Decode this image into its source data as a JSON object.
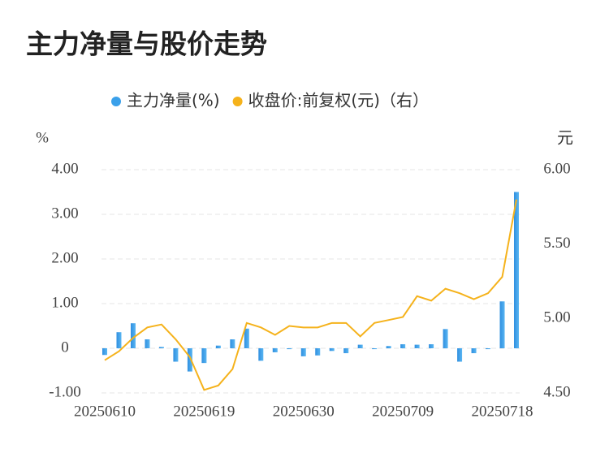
{
  "chart_data": {
    "type": "bar_line",
    "title": "主力净量与股价走势",
    "y_unit": "%",
    "y2_unit": "元",
    "categories": [
      "20250610",
      null,
      null,
      null,
      null,
      null,
      null,
      "20250619",
      null,
      null,
      null,
      null,
      null,
      null,
      "20250630",
      null,
      null,
      null,
      null,
      null,
      null,
      "20250709",
      null,
      null,
      null,
      null,
      null,
      null,
      "20250718",
      null
    ],
    "series": [
      {
        "name": "主力净量(%)",
        "type": "bar",
        "color": "#3aa0ea",
        "values": [
          -0.15,
          0.36,
          0.56,
          0.2,
          0.03,
          -0.3,
          -0.52,
          -0.33,
          0.06,
          0.2,
          0.44,
          -0.28,
          -0.09,
          -0.02,
          -0.18,
          -0.16,
          -0.06,
          -0.11,
          0.08,
          -0.02,
          0.05,
          0.09,
          0.08,
          0.09,
          0.43,
          -0.3,
          -0.11,
          -0.02,
          1.05,
          3.5
        ]
      },
      {
        "name": "收盘价:前复权(元)（右）",
        "type": "line",
        "axis": "y2",
        "color": "#f5b21b",
        "values": [
          4.72,
          4.78,
          4.87,
          4.94,
          4.96,
          4.86,
          4.74,
          4.52,
          4.55,
          4.66,
          4.97,
          4.94,
          4.89,
          4.95,
          4.94,
          4.94,
          4.97,
          4.97,
          4.88,
          4.97,
          4.99,
          5.01,
          5.15,
          5.12,
          5.2,
          5.17,
          5.13,
          5.17,
          5.28,
          5.8
        ]
      }
    ],
    "ylim": [
      -1,
      4
    ],
    "yticks": [
      {
        "value": -1,
        "label": "-1.00"
      },
      0,
      {
        "value": 1,
        "label": "1.00"
      },
      {
        "value": 2,
        "label": "2.00"
      },
      {
        "value": 3,
        "label": "3.00"
      },
      {
        "value": 4,
        "label": "4.00"
      }
    ],
    "y2lim": [
      4.5,
      6
    ],
    "y2ticks": [
      {
        "value": 4.5,
        "label": "4.50"
      },
      {
        "value": 5,
        "label": "5.00"
      },
      {
        "value": 5.5,
        "label": "5.50"
      },
      {
        "value": 6,
        "label": "6.00"
      }
    ],
    "grid": true,
    "legend": "top"
  }
}
